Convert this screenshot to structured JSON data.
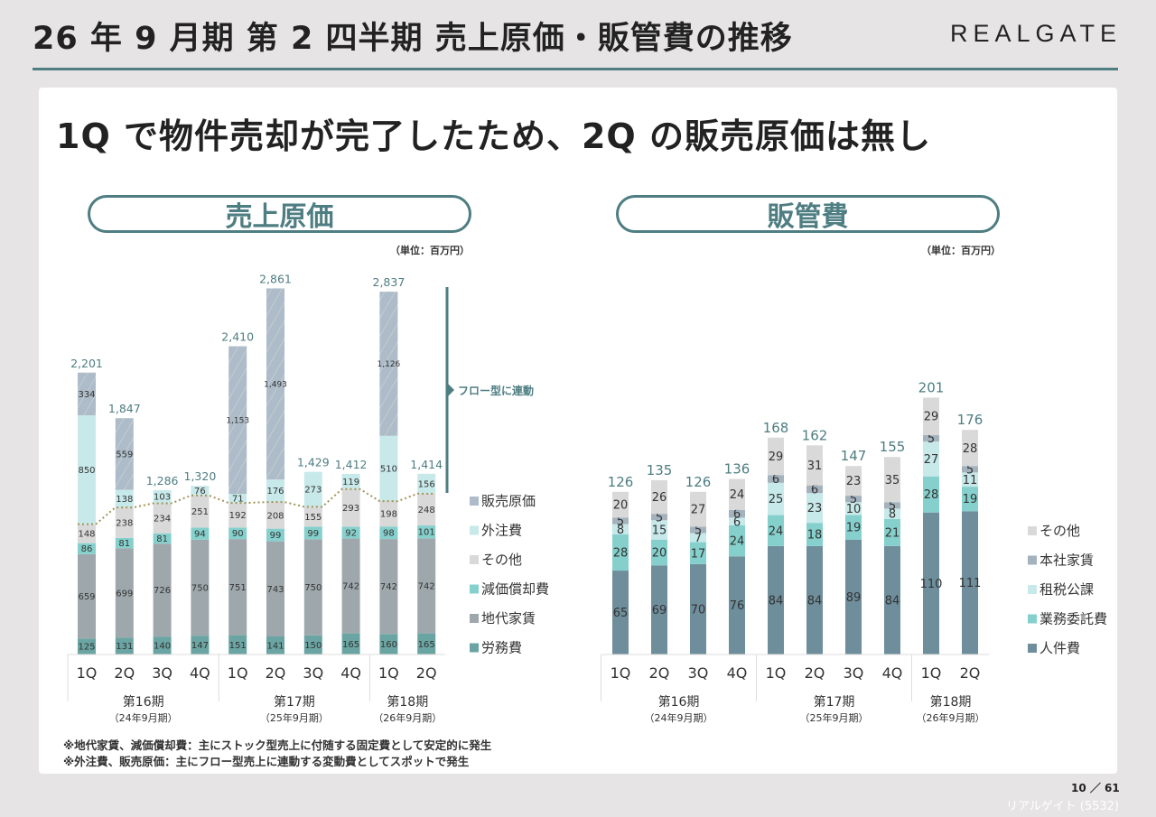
{
  "header": {
    "title": "26 年 9 月期  第 2 四半期  売上原価・販管費の推移",
    "logo": "REALGATE"
  },
  "headline": "1Q で物件売却が完了したため、2Q の販売原価は無し",
  "footer": {
    "notes": [
      "※地代家賃、減価償却費：主にストック型売上に付随する固定費として安定的に発生",
      "※外注費、販売原価：主にフロー型売上に連動する変動費としてスポットで発生"
    ],
    "page": "10 ／ 61",
    "company": "リアルゲイト (5532)"
  },
  "colors": {
    "accent": "#4e7d82",
    "total_label": "#4e7d82"
  },
  "chart_data": [
    {
      "type": "bar",
      "stacked": true,
      "title": "売上原価",
      "unit": "（単位：百万円）",
      "categories": [
        "1Q",
        "2Q",
        "3Q",
        "4Q",
        "1Q",
        "2Q",
        "3Q",
        "4Q",
        "1Q",
        "2Q"
      ],
      "groups": [
        {
          "label": "第16期",
          "sub": "（24年9月期）",
          "count": 4
        },
        {
          "label": "第17期",
          "sub": "（25年9月期）",
          "count": 4
        },
        {
          "label": "第18期",
          "sub": "（26年9月期）",
          "count": 2
        }
      ],
      "series": [
        {
          "name": "労務費",
          "color": "#6aa5a3",
          "values": [
            125,
            131,
            140,
            147,
            151,
            141,
            150,
            165,
            160,
            165
          ]
        },
        {
          "name": "地代家賃",
          "color": "#9ea8ac",
          "values": [
            659,
            699,
            726,
            750,
            751,
            743,
            750,
            742,
            742,
            742
          ]
        },
        {
          "name": "減価償却費",
          "color": "#85d0cc",
          "values": [
            86,
            81,
            81,
            94,
            90,
            99,
            99,
            92,
            98,
            101
          ]
        },
        {
          "name": "その他",
          "color": "#d9d9d9",
          "values": [
            148,
            238,
            234,
            251,
            192,
            208,
            155,
            293,
            198,
            248
          ]
        },
        {
          "name": "外注費",
          "color": "#c8e9ea",
          "values": [
            850,
            138,
            103,
            76,
            71,
            176,
            273,
            119,
            510,
            156
          ]
        },
        {
          "name": "販売原価",
          "color": "#adbcc8",
          "hatched": true,
          "values": [
            334,
            559,
            null,
            null,
            1153,
            1493,
            null,
            null,
            1126,
            null
          ]
        }
      ],
      "totals": [
        2201,
        1847,
        1286,
        1320,
        2410,
        2861,
        1429,
        1412,
        2837,
        1414
      ],
      "annotation": "フロー型に連動",
      "dotted_line": "boundary between fixed (stock) and variable (flow) costs",
      "legend_position": "right",
      "ylim": [
        0,
        3000
      ]
    },
    {
      "type": "bar",
      "stacked": true,
      "title": "販管費",
      "unit": "（単位：百万円）",
      "categories": [
        "1Q",
        "2Q",
        "3Q",
        "4Q",
        "1Q",
        "2Q",
        "3Q",
        "4Q",
        "1Q",
        "2Q"
      ],
      "groups": [
        {
          "label": "第16期",
          "sub": "（24年9月期）",
          "count": 4
        },
        {
          "label": "第17期",
          "sub": "（25年9月期）",
          "count": 4
        },
        {
          "label": "第18期",
          "sub": "（26年9月期）",
          "count": 2
        }
      ],
      "series": [
        {
          "name": "人件費",
          "color": "#6e8e9c",
          "values": [
            65,
            69,
            70,
            76,
            84,
            84,
            89,
            84,
            110,
            111
          ]
        },
        {
          "name": "業務委託費",
          "color": "#85d0cc",
          "values": [
            28,
            20,
            17,
            24,
            24,
            18,
            19,
            21,
            28,
            19
          ]
        },
        {
          "name": "租税公課",
          "color": "#c8e9ea",
          "values": [
            8,
            15,
            7,
            6,
            25,
            23,
            10,
            8,
            27,
            11
          ]
        },
        {
          "name": "本社家賃",
          "color": "#a3b2bd",
          "values": [
            5,
            5,
            5,
            6,
            6,
            6,
            5,
            5,
            5,
            5
          ]
        },
        {
          "name": "その他",
          "color": "#d9d9d9",
          "values": [
            20,
            26,
            27,
            24,
            29,
            31,
            23,
            35,
            29,
            28
          ]
        }
      ],
      "totals": [
        126,
        135,
        126,
        136,
        168,
        162,
        147,
        155,
        201,
        176
      ],
      "legend_position": "right",
      "ylim": [
        0,
        220
      ]
    }
  ]
}
